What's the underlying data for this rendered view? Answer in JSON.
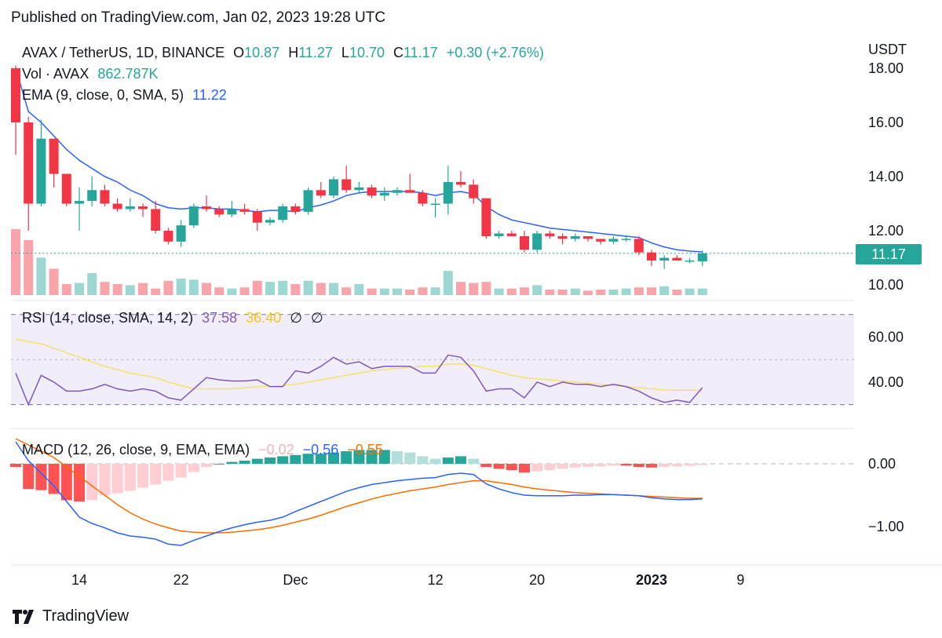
{
  "published": "Published on TradingView.com, Jan 02, 2023 19:28 UTC",
  "brand": "TradingView",
  "currency": "USDT",
  "price_badge": "11.17",
  "legend": {
    "symbol": "AVAX / TetherUS, 1D, BINANCE",
    "o_label": "O",
    "o_val": "10.87",
    "h_label": "H",
    "h_val": "11.27",
    "l_label": "L",
    "l_val": "10.70",
    "c_label": "C",
    "c_val": "11.17",
    "change": "+0.30 (+2.76%)",
    "vol_label": "Vol · AVAX",
    "vol_val": "862.787K",
    "ema_label": "EMA (9, close, 0, SMA, 5)",
    "ema_val": "11.22",
    "rsi_label": "RSI (14, close, SMA, 14, 2)",
    "rsi_val": "37.58",
    "rsi_ma_val": "36.40",
    "rsi_na1": "∅",
    "rsi_na2": "∅",
    "macd_label": "MACD (12, 26, close, 9, EMA, EMA)",
    "macd_hist_val": "−0.02",
    "macd_val": "−0.56",
    "macd_sig_val": "−0.55"
  },
  "colors": {
    "up": "#26a69a",
    "down": "#f23645",
    "ema": "#2962ff",
    "rsi": "#7e57c2",
    "rsi_ma": "#f5e16e",
    "macd": "#2962ff",
    "signal": "#ff6d00"
  },
  "chart_data": [
    {
      "type": "candlestick",
      "title": "AVAX / TetherUS, 1D, BINANCE",
      "y_ticks": [
        "18.00",
        "16.00",
        "14.00",
        "12.00",
        "10.00"
      ],
      "ylim": [
        9.8,
        18.2
      ],
      "x_ticks": [
        "14",
        "22",
        "Dec",
        "12",
        "20",
        "2023",
        "9"
      ],
      "x_tick_index": [
        5,
        13,
        22,
        33,
        41,
        50,
        57
      ],
      "candles": [
        {
          "d": "Nov 9",
          "o": 18.0,
          "h": 18.1,
          "l": 14.8,
          "c": 16.0
        },
        {
          "d": "Nov 10",
          "o": 16.0,
          "h": 16.2,
          "l": 12.0,
          "c": 13.0
        },
        {
          "d": "Nov 11",
          "o": 13.0,
          "h": 16.1,
          "l": 12.9,
          "c": 15.4
        },
        {
          "d": "Nov 12",
          "o": 15.4,
          "h": 15.4,
          "l": 13.6,
          "c": 14.1
        },
        {
          "d": "Nov 13",
          "o": 14.1,
          "h": 14.1,
          "l": 12.9,
          "c": 13.0
        },
        {
          "d": "Nov 14",
          "o": 13.0,
          "h": 13.6,
          "l": 12.0,
          "c": 13.1
        },
        {
          "d": "Nov 15",
          "o": 13.1,
          "h": 14.0,
          "l": 12.9,
          "c": 13.5
        },
        {
          "d": "Nov 16",
          "o": 13.5,
          "h": 13.7,
          "l": 12.9,
          "c": 13.0
        },
        {
          "d": "Nov 17",
          "o": 13.0,
          "h": 13.2,
          "l": 12.7,
          "c": 12.8
        },
        {
          "d": "Nov 18",
          "o": 12.8,
          "h": 13.2,
          "l": 12.7,
          "c": 12.9
        },
        {
          "d": "Nov 19",
          "o": 12.9,
          "h": 13.0,
          "l": 12.5,
          "c": 12.8
        },
        {
          "d": "Nov 20",
          "o": 12.8,
          "h": 13.1,
          "l": 11.9,
          "c": 12.0
        },
        {
          "d": "Nov 21",
          "o": 12.0,
          "h": 12.1,
          "l": 11.5,
          "c": 11.6
        },
        {
          "d": "Nov 22",
          "o": 11.6,
          "h": 12.4,
          "l": 11.4,
          "c": 12.2
        },
        {
          "d": "Nov 23",
          "o": 12.2,
          "h": 13.0,
          "l": 12.1,
          "c": 12.9
        },
        {
          "d": "Nov 24",
          "o": 12.9,
          "h": 13.3,
          "l": 12.7,
          "c": 12.8
        },
        {
          "d": "Nov 25",
          "o": 12.8,
          "h": 12.9,
          "l": 12.5,
          "c": 12.6
        },
        {
          "d": "Nov 26",
          "o": 12.6,
          "h": 13.1,
          "l": 12.5,
          "c": 12.8
        },
        {
          "d": "Nov 27",
          "o": 12.8,
          "h": 13.0,
          "l": 12.6,
          "c": 12.7
        },
        {
          "d": "Nov 28",
          "o": 12.7,
          "h": 12.8,
          "l": 12.0,
          "c": 12.3
        },
        {
          "d": "Nov 29",
          "o": 12.3,
          "h": 12.5,
          "l": 12.2,
          "c": 12.4
        },
        {
          "d": "Nov 30",
          "o": 12.4,
          "h": 13.0,
          "l": 12.3,
          "c": 12.9
        },
        {
          "d": "Dec 1",
          "o": 12.9,
          "h": 13.0,
          "l": 12.6,
          "c": 12.7
        },
        {
          "d": "Dec 2",
          "o": 12.7,
          "h": 13.6,
          "l": 12.6,
          "c": 13.5
        },
        {
          "d": "Dec 3",
          "o": 13.5,
          "h": 13.8,
          "l": 13.2,
          "c": 13.3
        },
        {
          "d": "Dec 4",
          "o": 13.3,
          "h": 14.0,
          "l": 13.2,
          "c": 13.9
        },
        {
          "d": "Dec 5",
          "o": 13.9,
          "h": 14.4,
          "l": 13.4,
          "c": 13.5
        },
        {
          "d": "Dec 6",
          "o": 13.5,
          "h": 13.8,
          "l": 13.4,
          "c": 13.6
        },
        {
          "d": "Dec 7",
          "o": 13.6,
          "h": 13.7,
          "l": 13.2,
          "c": 13.3
        },
        {
          "d": "Dec 8",
          "o": 13.3,
          "h": 13.6,
          "l": 13.1,
          "c": 13.4
        },
        {
          "d": "Dec 9",
          "o": 13.4,
          "h": 13.6,
          "l": 13.3,
          "c": 13.5
        },
        {
          "d": "Dec 10",
          "o": 13.5,
          "h": 14.1,
          "l": 13.4,
          "c": 13.4
        },
        {
          "d": "Dec 11",
          "o": 13.4,
          "h": 13.5,
          "l": 12.9,
          "c": 13.0
        },
        {
          "d": "Dec 12",
          "o": 13.0,
          "h": 13.2,
          "l": 12.5,
          "c": 13.0
        },
        {
          "d": "Dec 13",
          "o": 13.0,
          "h": 14.4,
          "l": 12.6,
          "c": 13.8
        },
        {
          "d": "Dec 14",
          "o": 13.8,
          "h": 14.2,
          "l": 13.6,
          "c": 13.7
        },
        {
          "d": "Dec 15",
          "o": 13.7,
          "h": 13.9,
          "l": 13.0,
          "c": 13.2
        },
        {
          "d": "Dec 16",
          "o": 13.2,
          "h": 13.2,
          "l": 11.7,
          "c": 11.8
        },
        {
          "d": "Dec 17",
          "o": 11.8,
          "h": 12.0,
          "l": 11.7,
          "c": 11.9
        },
        {
          "d": "Dec 18",
          "o": 11.9,
          "h": 12.0,
          "l": 11.8,
          "c": 11.8
        },
        {
          "d": "Dec 19",
          "o": 11.8,
          "h": 12.0,
          "l": 11.2,
          "c": 11.3
        },
        {
          "d": "Dec 20",
          "o": 11.3,
          "h": 12.0,
          "l": 11.2,
          "c": 11.9
        },
        {
          "d": "Dec 21",
          "o": 11.9,
          "h": 12.0,
          "l": 11.7,
          "c": 11.8
        },
        {
          "d": "Dec 22",
          "o": 11.8,
          "h": 11.9,
          "l": 11.5,
          "c": 11.7
        },
        {
          "d": "Dec 23",
          "o": 11.7,
          "h": 11.9,
          "l": 11.6,
          "c": 11.8
        },
        {
          "d": "Dec 24",
          "o": 11.8,
          "h": 11.8,
          "l": 11.6,
          "c": 11.7
        },
        {
          "d": "Dec 25",
          "o": 11.7,
          "h": 11.7,
          "l": 11.5,
          "c": 11.6
        },
        {
          "d": "Dec 26",
          "o": 11.6,
          "h": 11.8,
          "l": 11.5,
          "c": 11.7
        },
        {
          "d": "Dec 27",
          "o": 11.7,
          "h": 11.8,
          "l": 11.6,
          "c": 11.7
        },
        {
          "d": "Dec 28",
          "o": 11.7,
          "h": 11.8,
          "l": 11.1,
          "c": 11.2
        },
        {
          "d": "Dec 29",
          "o": 11.2,
          "h": 11.3,
          "l": 10.7,
          "c": 10.9
        },
        {
          "d": "Dec 30",
          "o": 10.9,
          "h": 11.1,
          "l": 10.6,
          "c": 11.0
        },
        {
          "d": "Dec 31",
          "o": 11.0,
          "h": 11.1,
          "l": 10.9,
          "c": 10.9
        },
        {
          "d": "Jan 1",
          "o": 10.9,
          "h": 11.0,
          "l": 10.8,
          "c": 10.9
        },
        {
          "d": "Jan 2",
          "o": 10.87,
          "h": 11.27,
          "l": 10.7,
          "c": 11.17
        }
      ],
      "volume": [
        3.0,
        2.5,
        1.7,
        1.2,
        0.5,
        0.55,
        1.0,
        0.6,
        0.5,
        0.45,
        0.55,
        0.3,
        0.65,
        0.75,
        0.7,
        0.55,
        0.35,
        0.3,
        0.35,
        0.65,
        0.6,
        0.65,
        0.5,
        0.65,
        0.55,
        0.55,
        0.35,
        0.5,
        0.3,
        0.3,
        0.3,
        0.25,
        0.35,
        0.35,
        1.1,
        0.6,
        0.55,
        0.6,
        0.3,
        0.3,
        0.35,
        0.45,
        0.25,
        0.25,
        0.3,
        0.2,
        0.25,
        0.25,
        0.3,
        0.35,
        0.35,
        0.4,
        0.25,
        0.3,
        0.3
      ],
      "ema": [
        18.0,
        16.4,
        16.0,
        15.5,
        15.0,
        14.6,
        14.3,
        14.0,
        13.8,
        13.5,
        13.3,
        13.0,
        12.85,
        12.8,
        12.85,
        12.85,
        12.8,
        12.8,
        12.75,
        12.7,
        12.75,
        12.75,
        12.7,
        12.85,
        12.95,
        13.1,
        13.3,
        13.4,
        13.45,
        13.45,
        13.45,
        13.45,
        13.4,
        13.3,
        13.4,
        13.45,
        13.35,
        12.9,
        12.6,
        12.4,
        12.3,
        12.2,
        12.1,
        12.05,
        12.0,
        11.95,
        11.9,
        11.85,
        11.8,
        11.75,
        11.55,
        11.4,
        11.3,
        11.25,
        11.22
      ]
    },
    {
      "type": "line",
      "title": "RSI (14, close, SMA, 14, 2)",
      "y_ticks": [
        "60.00",
        "40.00"
      ],
      "ylim": [
        25,
        72
      ],
      "bands": [
        70,
        50,
        30
      ],
      "series": [
        {
          "name": "RSI",
          "values": [
            44,
            30,
            43,
            40,
            36,
            36,
            37,
            39,
            37,
            36,
            37,
            36,
            33,
            32,
            37,
            42,
            41,
            40.5,
            40.5,
            41,
            38,
            38,
            45,
            44,
            47,
            51,
            48,
            49,
            46,
            47,
            47,
            47,
            44,
            44,
            52,
            51,
            45,
            36,
            37,
            37,
            33,
            40,
            38,
            40,
            39,
            39,
            38,
            39,
            38,
            36,
            33,
            31,
            32,
            31,
            37.58
          ]
        },
        {
          "name": "RSI-based MA",
          "values": [
            59,
            58,
            57,
            55,
            53,
            51,
            49,
            47,
            45.5,
            44,
            43,
            42,
            40,
            38.5,
            37,
            37,
            37,
            37,
            37.5,
            38,
            38,
            38.5,
            39,
            40,
            41,
            42,
            43,
            44,
            45,
            45.5,
            46,
            46.5,
            47,
            47,
            48,
            48,
            47.5,
            46,
            44.5,
            43,
            42,
            41.5,
            41,
            40.5,
            40,
            39.5,
            39,
            38.5,
            38,
            37.5,
            37,
            36.5,
            36.4,
            36.4,
            36.4
          ]
        }
      ]
    },
    {
      "type": "bar",
      "title": "MACD (12, 26, close, 9, EMA, EMA)",
      "y_ticks": [
        "0.00",
        "−1.00"
      ],
      "ylim": [
        -1.55,
        0.45
      ],
      "histogram": [
        -0.05,
        -0.4,
        -0.42,
        -0.48,
        -0.58,
        -0.6,
        -0.58,
        -0.5,
        -0.47,
        -0.43,
        -0.38,
        -0.33,
        -0.27,
        -0.22,
        -0.13,
        -0.05,
        0.0,
        0.03,
        0.05,
        0.08,
        0.1,
        0.12,
        0.14,
        0.16,
        0.16,
        0.18,
        0.2,
        0.22,
        0.22,
        0.22,
        0.2,
        0.18,
        0.12,
        0.08,
        0.1,
        0.12,
        0.08,
        -0.05,
        -0.08,
        -0.1,
        -0.14,
        -0.12,
        -0.1,
        -0.08,
        -0.06,
        -0.05,
        -0.04,
        -0.03,
        -0.03,
        -0.05,
        -0.06,
        -0.05,
        -0.04,
        -0.03,
        -0.02
      ],
      "macd": [
        0.35,
        0.05,
        -0.15,
        -0.35,
        -0.6,
        -0.85,
        -0.95,
        -1.02,
        -1.1,
        -1.15,
        -1.17,
        -1.2,
        -1.28,
        -1.3,
        -1.22,
        -1.15,
        -1.08,
        -1.02,
        -0.97,
        -0.93,
        -0.9,
        -0.85,
        -0.76,
        -0.68,
        -0.6,
        -0.52,
        -0.44,
        -0.38,
        -0.33,
        -0.3,
        -0.27,
        -0.25,
        -0.23,
        -0.22,
        -0.17,
        -0.15,
        -0.17,
        -0.32,
        -0.4,
        -0.46,
        -0.5,
        -0.51,
        -0.51,
        -0.51,
        -0.5,
        -0.5,
        -0.49,
        -0.49,
        -0.5,
        -0.51,
        -0.54,
        -0.56,
        -0.57,
        -0.57,
        -0.56
      ],
      "signal": [
        0.4,
        0.3,
        0.2,
        0.1,
        -0.05,
        -0.2,
        -0.35,
        -0.5,
        -0.65,
        -0.78,
        -0.88,
        -0.96,
        -1.02,
        -1.07,
        -1.09,
        -1.1,
        -1.1,
        -1.09,
        -1.07,
        -1.05,
        -1.02,
        -0.98,
        -0.93,
        -0.88,
        -0.82,
        -0.75,
        -0.68,
        -0.62,
        -0.56,
        -0.51,
        -0.47,
        -0.43,
        -0.4,
        -0.37,
        -0.33,
        -0.3,
        -0.27,
        -0.27,
        -0.3,
        -0.33,
        -0.37,
        -0.4,
        -0.42,
        -0.44,
        -0.46,
        -0.47,
        -0.48,
        -0.49,
        -0.5,
        -0.51,
        -0.52,
        -0.53,
        -0.54,
        -0.55,
        -0.55
      ]
    }
  ]
}
